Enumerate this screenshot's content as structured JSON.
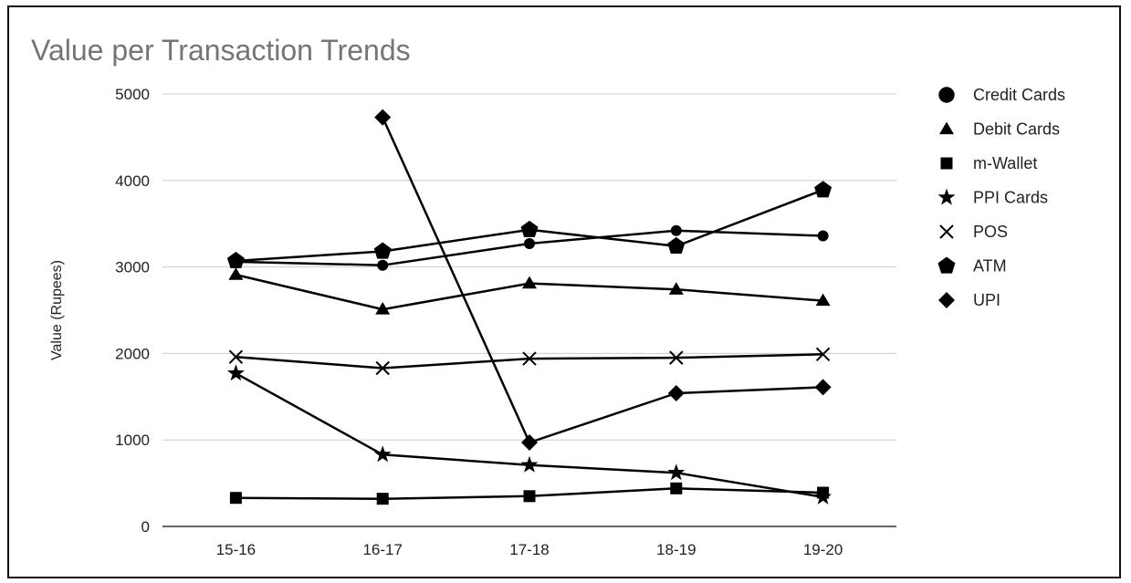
{
  "chart_data": {
    "type": "line",
    "title": "Value per Transaction Trends",
    "xlabel": "",
    "ylabel": "Value (Rupees)",
    "ylim": [
      0,
      5000
    ],
    "yticks": [
      "0",
      "1000",
      "2000",
      "3000",
      "4000",
      "5000"
    ],
    "categories": [
      "15-16",
      "16-17",
      "17-18",
      "18-19",
      "19-20"
    ],
    "grid": true,
    "legend_position": "right",
    "line_color": "#000000",
    "series": [
      {
        "name": "Credit Cards",
        "marker": "circle",
        "values": [
          3060,
          3020,
          3270,
          3420,
          3360
        ]
      },
      {
        "name": "Debit Cards",
        "marker": "triangle",
        "values": [
          2910,
          2510,
          2810,
          2740,
          2610
        ]
      },
      {
        "name": "m-Wallet",
        "marker": "square",
        "values": [
          330,
          320,
          350,
          440,
          390
        ]
      },
      {
        "name": "PPI Cards",
        "marker": "star",
        "values": [
          1770,
          830,
          710,
          620,
          340
        ]
      },
      {
        "name": "POS",
        "marker": "x",
        "values": [
          1960,
          1830,
          1940,
          1950,
          1990
        ]
      },
      {
        "name": "ATM",
        "marker": "pentagon",
        "values": [
          3070,
          3180,
          3430,
          3240,
          3890
        ]
      },
      {
        "name": "UPI",
        "marker": "diamond",
        "values": [
          null,
          4730,
          970,
          1540,
          1610
        ]
      }
    ]
  }
}
